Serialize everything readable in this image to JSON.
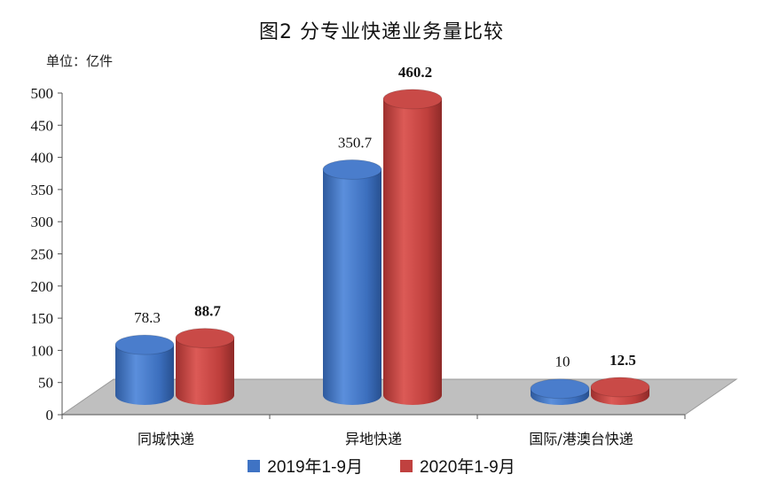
{
  "chart_data": {
    "type": "bar",
    "title": "图2  分专业快递业务量比较",
    "unit_label": "单位：亿件",
    "categories": [
      "同城快递",
      "异地快递",
      "国际/港澳台快递"
    ],
    "series": [
      {
        "name": "2019年1-9月",
        "values": [
          78.3,
          350.7,
          10
        ],
        "labels": [
          "78.3",
          "350.7",
          "10"
        ],
        "color": "#3f73c4"
      },
      {
        "name": "2020年1-9月",
        "values": [
          88.7,
          460.2,
          12.5
        ],
        "labels": [
          "88.7",
          "460.2",
          "12.5"
        ],
        "color": "#c0413f"
      }
    ],
    "ylim": [
      0,
      500
    ],
    "yticks": [
      "0",
      "50",
      "100",
      "150",
      "200",
      "250",
      "300",
      "350",
      "400",
      "450",
      "500"
    ],
    "xlabel": "",
    "ylabel": "",
    "grid": false,
    "legend_position": "bottom",
    "floor_color": "#bfbfbf"
  }
}
